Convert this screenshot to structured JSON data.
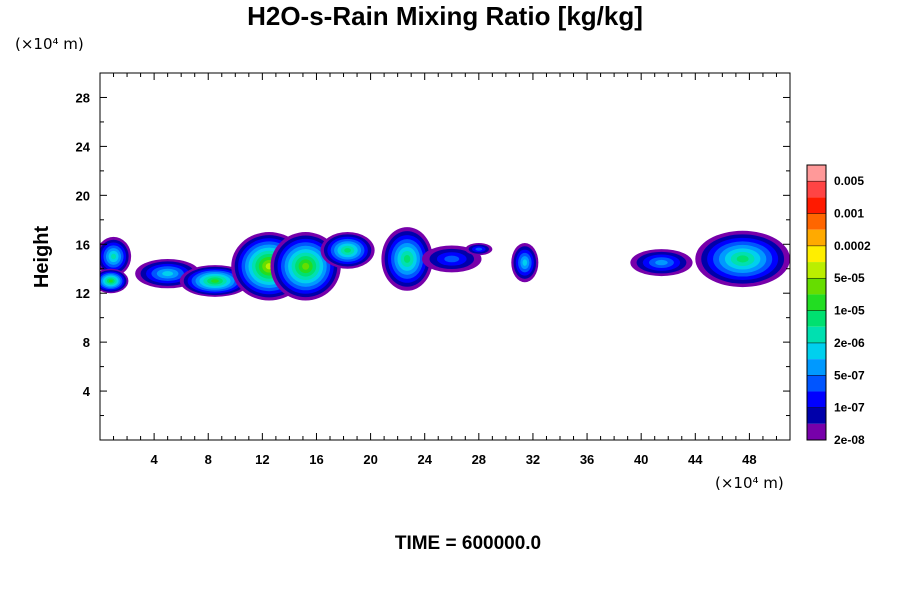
{
  "chart_data": {
    "type": "heatmap",
    "title": "H2O-s-Rain Mixing Ratio [kg/kg]",
    "ylabel": "Height",
    "y_unit": "(×10⁴ m)",
    "x_unit": "(×10⁴ m)",
    "xlim": [
      0,
      51
    ],
    "ylim": [
      0,
      30
    ],
    "x_ticks": [
      4,
      8,
      12,
      16,
      20,
      24,
      28,
      32,
      36,
      40,
      44,
      48
    ],
    "y_ticks": [
      4,
      8,
      12,
      16,
      20,
      24,
      28
    ],
    "time_label": "TIME = 600000.0",
    "colorbar": {
      "labels": [
        "0.005",
        "0.001",
        "0.0002",
        "5e-05",
        "1e-05",
        "2e-06",
        "5e-07",
        "1e-07",
        "2e-08"
      ],
      "colors": [
        "#ff9999",
        "#ff4444",
        "#ff1a00",
        "#ff6600",
        "#ffaa00",
        "#ffee00",
        "#bbee00",
        "#66dd00",
        "#22dd22",
        "#00e070",
        "#00e0b0",
        "#00d0ee",
        "#0099ff",
        "#0055ff",
        "#0000ff",
        "#0000aa",
        "#7700aa"
      ]
    },
    "clouds": [
      {
        "x": 1.0,
        "y": 15.0,
        "rx": 1.3,
        "ry": 1.6,
        "level": 10
      },
      {
        "x": 0.8,
        "y": 13.0,
        "rx": 1.3,
        "ry": 1.0,
        "level": 8
      },
      {
        "x": 5.0,
        "y": 13.6,
        "rx": 2.4,
        "ry": 1.2,
        "level": 11
      },
      {
        "x": 8.5,
        "y": 13.0,
        "rx": 2.6,
        "ry": 1.3,
        "level": 8
      },
      {
        "x": 12.5,
        "y": 14.2,
        "rx": 2.8,
        "ry": 2.8,
        "level": 6
      },
      {
        "x": 15.2,
        "y": 14.2,
        "rx": 2.6,
        "ry": 2.8,
        "level": 7
      },
      {
        "x": 18.3,
        "y": 15.5,
        "rx": 2.0,
        "ry": 1.5,
        "level": 9
      },
      {
        "x": 22.7,
        "y": 14.8,
        "rx": 1.9,
        "ry": 2.6,
        "level": 9
      },
      {
        "x": 26.0,
        "y": 14.8,
        "rx": 2.2,
        "ry": 1.1,
        "level": 13
      },
      {
        "x": 28.0,
        "y": 15.6,
        "rx": 1.0,
        "ry": 0.5,
        "level": 13
      },
      {
        "x": 31.4,
        "y": 14.5,
        "rx": 1.0,
        "ry": 1.6,
        "level": 11
      },
      {
        "x": 41.5,
        "y": 14.5,
        "rx": 2.3,
        "ry": 1.1,
        "level": 12
      },
      {
        "x": 47.5,
        "y": 14.8,
        "rx": 3.5,
        "ry": 2.3,
        "level": 9
      }
    ]
  }
}
